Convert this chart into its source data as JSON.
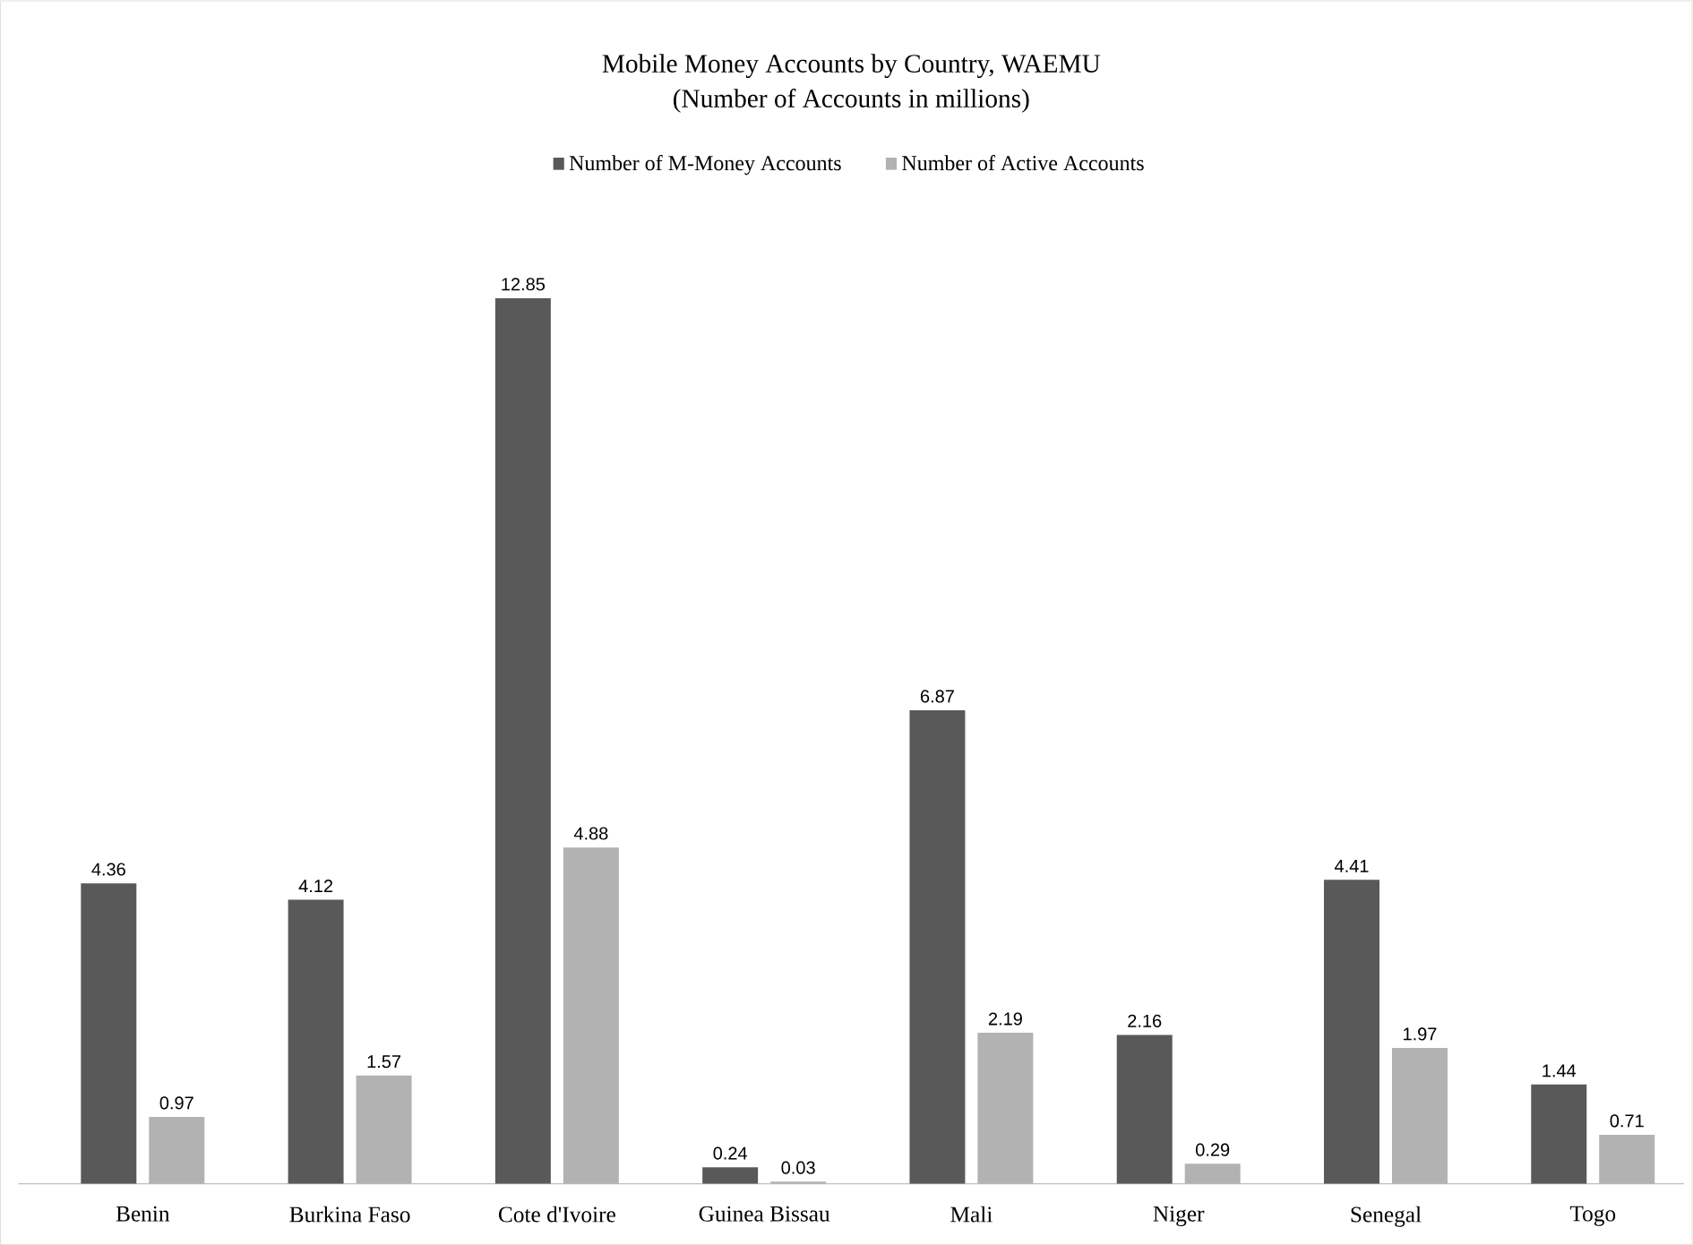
{
  "chart_data": {
    "type": "bar",
    "title": "Mobile Money Accounts by Country, WAEMU",
    "subtitle": "(Number of Accounts in millions)",
    "categories": [
      "Benin",
      "Burkina Faso",
      "Cote d'Ivoire",
      "Guinea Bissau",
      "Mali",
      "Niger",
      "Senegal",
      "Togo"
    ],
    "series": [
      {
        "name": "Number of M-Money Accounts",
        "color": "#595959",
        "values": [
          4.36,
          4.12,
          12.85,
          0.24,
          6.87,
          2.16,
          4.41,
          1.44
        ]
      },
      {
        "name": "Number of Active Accounts",
        "color": "#b2b2b2",
        "values": [
          0.97,
          1.57,
          4.88,
          0.03,
          2.19,
          0.29,
          1.97,
          0.71
        ]
      }
    ],
    "data_labels": true,
    "legend": "top"
  }
}
